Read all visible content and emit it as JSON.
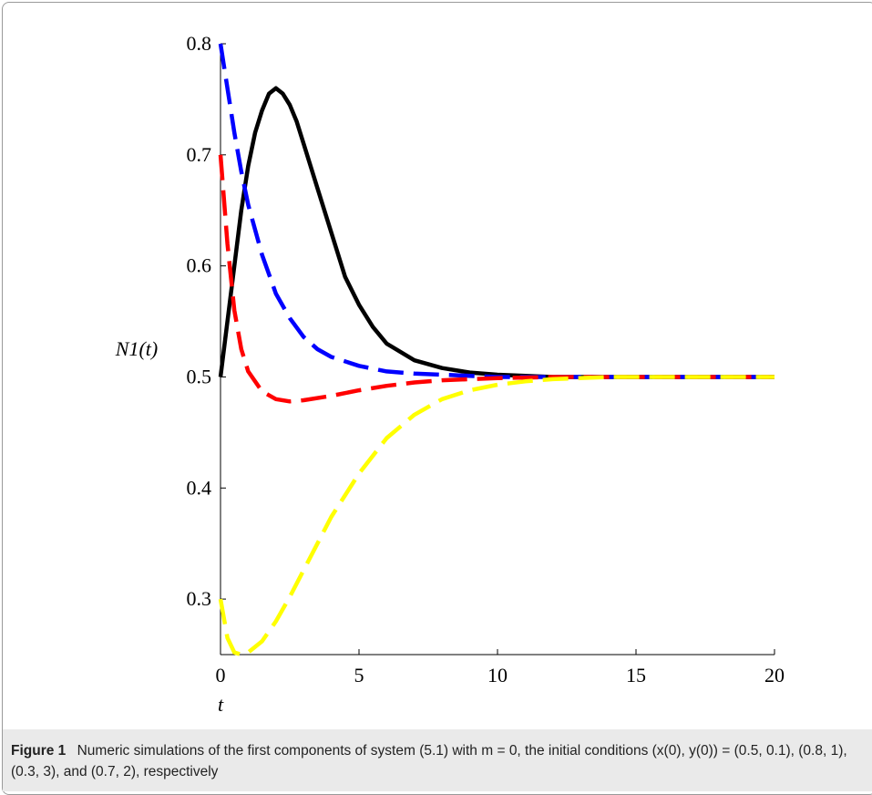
{
  "figure": {
    "label": "Figure 1",
    "caption": "Numeric simulations of the first components of system (5.1) with m = 0, the initial conditions (x(0), y(0)) = (0.5, 0.1), (0.8, 1), (0.3, 3), and (0.7, 2), respectively"
  },
  "chart_data": {
    "type": "line",
    "xlabel": "t",
    "ylabel": "N1(t)",
    "xlim": [
      0,
      20
    ],
    "ylim": [
      0.25,
      0.8
    ],
    "xticks": [
      "0",
      "5",
      "10",
      "15",
      "20"
    ],
    "yticks": [
      "0.3",
      "0.4",
      "0.5",
      "0.6",
      "0.7",
      "0.8"
    ],
    "grid": false,
    "series": [
      {
        "color": "#000000",
        "style": "solid",
        "x": [
          0,
          0.25,
          0.5,
          0.75,
          1,
          1.25,
          1.5,
          1.75,
          2,
          2.25,
          2.5,
          2.75,
          3,
          3.5,
          4,
          4.5,
          5,
          5.5,
          6,
          7,
          8,
          9,
          10,
          11,
          12,
          14,
          16,
          20
        ],
        "y": [
          0.5,
          0.55,
          0.6,
          0.65,
          0.69,
          0.72,
          0.74,
          0.755,
          0.76,
          0.755,
          0.745,
          0.73,
          0.71,
          0.67,
          0.63,
          0.59,
          0.565,
          0.545,
          0.53,
          0.515,
          0.508,
          0.504,
          0.502,
          0.501,
          0.5,
          0.5,
          0.5,
          0.5
        ]
      },
      {
        "color": "#0000ff",
        "style": "dashed",
        "x": [
          0,
          0.25,
          0.5,
          0.75,
          1,
          1.5,
          2,
          2.5,
          3,
          3.5,
          4,
          5,
          6,
          7,
          8,
          10,
          12,
          15,
          20
        ],
        "y": [
          0.8,
          0.76,
          0.72,
          0.685,
          0.655,
          0.61,
          0.575,
          0.553,
          0.536,
          0.525,
          0.518,
          0.51,
          0.505,
          0.503,
          0.502,
          0.5,
          0.5,
          0.5,
          0.5
        ]
      },
      {
        "color": "#ff0000",
        "style": "dashed",
        "x": [
          0,
          0.25,
          0.5,
          0.75,
          1,
          1.5,
          2,
          2.5,
          3,
          4,
          5,
          6,
          7,
          8,
          10,
          12,
          15,
          20
        ],
        "y": [
          0.7,
          0.62,
          0.56,
          0.525,
          0.505,
          0.487,
          0.48,
          0.478,
          0.479,
          0.483,
          0.488,
          0.492,
          0.495,
          0.497,
          0.499,
          0.5,
          0.5,
          0.5
        ]
      },
      {
        "color": "#ffff00",
        "style": "dashed",
        "x": [
          0,
          0.25,
          0.5,
          0.75,
          1,
          1.5,
          2,
          2.5,
          3,
          3.5,
          4,
          5,
          6,
          7,
          8,
          9,
          10,
          11,
          12,
          14,
          16,
          20
        ],
        "y": [
          0.3,
          0.265,
          0.252,
          0.25,
          0.252,
          0.262,
          0.28,
          0.302,
          0.326,
          0.35,
          0.374,
          0.413,
          0.445,
          0.466,
          0.48,
          0.488,
          0.493,
          0.496,
          0.498,
          0.5,
          0.5,
          0.5
        ]
      }
    ]
  }
}
